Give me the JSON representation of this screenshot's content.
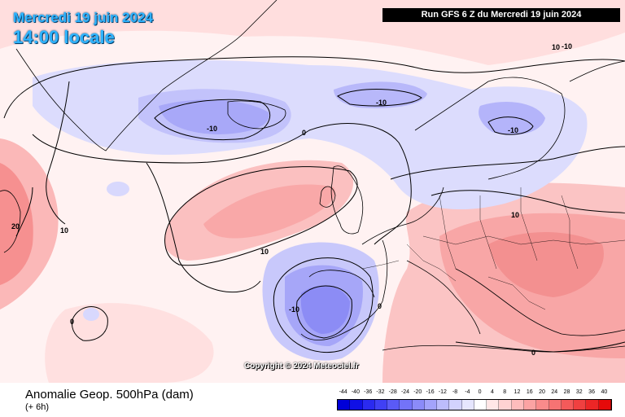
{
  "header": {
    "date": "Mercredi 19 juin 2024",
    "time": "14:00 locale",
    "run": "Run GFS 6 Z du Mercredi 19 juin 2024"
  },
  "footer": {
    "parameter": "Anomalie Geop. 500hPa (dam)",
    "lead": "(+ 6h)",
    "copyright": "Copyright © 2024 Meteociel.fr"
  },
  "contour_labels": [
    "-10",
    "-10",
    "-10",
    "-10",
    "-10",
    "0",
    "0",
    "0",
    "0",
    "10",
    "10",
    "10",
    "10",
    "20"
  ],
  "scale": {
    "ticks": [
      "-44",
      "-40",
      "-36",
      "-32",
      "-28",
      "-24",
      "-20",
      "-16",
      "-12",
      "-8",
      "-4",
      "0",
      "4",
      "8",
      "12",
      "16",
      "20",
      "24",
      "28",
      "32",
      "36",
      "40"
    ],
    "colors": [
      "#0000d8",
      "#1010e6",
      "#2a2af0",
      "#4040f4",
      "#5a5af6",
      "#7373f8",
      "#8b8bf9",
      "#a3a3fb",
      "#bcbcfc",
      "#d2d2fd",
      "#e6e6fe",
      "#ffffff",
      "#ffe6e6",
      "#ffd2d2",
      "#fdbcbc",
      "#fba3a3",
      "#f98b8b",
      "#f67373",
      "#f45a5a",
      "#f04040",
      "#ec2626",
      "#e60a0a"
    ]
  },
  "colors": {
    "positive_anomaly": "#f6a0a0",
    "negative_anomaly": "#bcbcfc",
    "title_text": "#2fb4ff"
  }
}
